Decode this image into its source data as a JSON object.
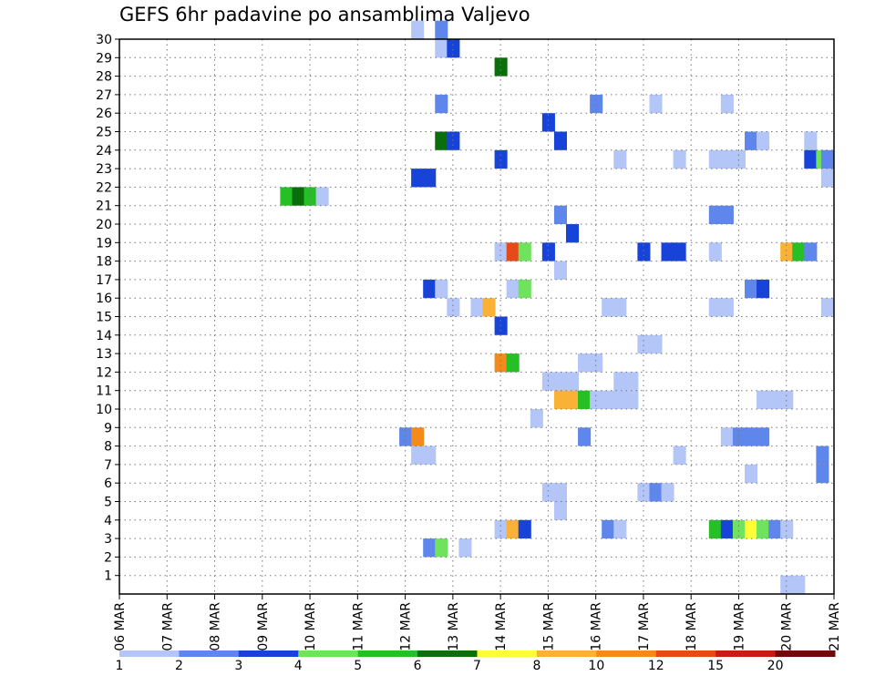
{
  "chart_data": {
    "type": "heatmap",
    "title": "GEFS 6hr padavine po ansamblima Valjevo",
    "xlabel": "",
    "ylabel": "",
    "x_ticks": [
      "06 MAR",
      "07 MAR",
      "08 MAR",
      "09 MAR",
      "10 MAR",
      "11 MAR",
      "12 MAR",
      "13 MAR",
      "14 MAR",
      "15 MAR",
      "16 MAR",
      "17 MAR",
      "18 MAR",
      "19 MAR",
      "20 MAR",
      "21 MAR"
    ],
    "x_range": [
      0,
      60
    ],
    "y_ticks": [
      "1",
      "2",
      "3",
      "4",
      "5",
      "6",
      "7",
      "8",
      "9",
      "10",
      "11",
      "12",
      "13",
      "14",
      "15",
      "16",
      "17",
      "18",
      "19",
      "20",
      "21",
      "22",
      "23",
      "24",
      "25",
      "26",
      "27",
      "28",
      "29",
      "30"
    ],
    "y_range": [
      0,
      30
    ],
    "grid": true,
    "grid_style": "dotted",
    "colorbar": {
      "labels": [
        "1",
        "2",
        "3",
        "4",
        "5",
        "6",
        "7",
        "8",
        "10",
        "12",
        "15",
        "20"
      ],
      "colors": [
        "#b3c6f7",
        "#5f86ea",
        "#1743d8",
        "#6fe35e",
        "#26bf26",
        "#0a6e0a",
        "#ffff33",
        "#f9b136",
        "#f28a1c",
        "#e64a1a",
        "#c81c10",
        "#6e0a0a"
      ]
    },
    "cells": [
      [
        25,
        30,
        0
      ],
      [
        27,
        30,
        1
      ],
      [
        27,
        29,
        0
      ],
      [
        28,
        29,
        2
      ],
      [
        32,
        28,
        5
      ],
      [
        27,
        26,
        1
      ],
      [
        40,
        26,
        1
      ],
      [
        45,
        26,
        0
      ],
      [
        51,
        26,
        0
      ],
      [
        36,
        25,
        2
      ],
      [
        27,
        24,
        5
      ],
      [
        28,
        24,
        2
      ],
      [
        37,
        24,
        2
      ],
      [
        53,
        24,
        1
      ],
      [
        54,
        24,
        0
      ],
      [
        58,
        24,
        0
      ],
      [
        32,
        23,
        2
      ],
      [
        42,
        23,
        0
      ],
      [
        47,
        23,
        0
      ],
      [
        50,
        23,
        0
      ],
      [
        51,
        23,
        0
      ],
      [
        52,
        23,
        0
      ],
      [
        58,
        23,
        2
      ],
      [
        59,
        23,
        3
      ],
      [
        60,
        23,
        1
      ],
      [
        25,
        22,
        2
      ],
      [
        26,
        22,
        2
      ],
      [
        60,
        22,
        0
      ],
      [
        14,
        21,
        4
      ],
      [
        15,
        21,
        5
      ],
      [
        16,
        21,
        4
      ],
      [
        17,
        21,
        0
      ],
      [
        37,
        20,
        1
      ],
      [
        50,
        20,
        1
      ],
      [
        51,
        20,
        1
      ],
      [
        38,
        19,
        2
      ],
      [
        32,
        18,
        0
      ],
      [
        33,
        18,
        9
      ],
      [
        34,
        18,
        3
      ],
      [
        36,
        18,
        2
      ],
      [
        44,
        18,
        2
      ],
      [
        46,
        18,
        2
      ],
      [
        47,
        18,
        2
      ],
      [
        50,
        18,
        0
      ],
      [
        56,
        18,
        7
      ],
      [
        57,
        18,
        4
      ],
      [
        58,
        18,
        1
      ],
      [
        37,
        17,
        0
      ],
      [
        26,
        16,
        2
      ],
      [
        27,
        16,
        0
      ],
      [
        33,
        16,
        0
      ],
      [
        34,
        16,
        3
      ],
      [
        53,
        16,
        1
      ],
      [
        54,
        16,
        2
      ],
      [
        28,
        15,
        0
      ],
      [
        30,
        15,
        0
      ],
      [
        31,
        15,
        7
      ],
      [
        41,
        15,
        0
      ],
      [
        42,
        15,
        0
      ],
      [
        50,
        15,
        0
      ],
      [
        51,
        15,
        0
      ],
      [
        60,
        15,
        0
      ],
      [
        32,
        14,
        2
      ],
      [
        44,
        13,
        0
      ],
      [
        45,
        13,
        0
      ],
      [
        32,
        12,
        8
      ],
      [
        33,
        12,
        4
      ],
      [
        39,
        12,
        0
      ],
      [
        40,
        12,
        0
      ],
      [
        36,
        11,
        0
      ],
      [
        37,
        11,
        0
      ],
      [
        38,
        11,
        0
      ],
      [
        42,
        11,
        0
      ],
      [
        43,
        11,
        0
      ],
      [
        37,
        10,
        7
      ],
      [
        38,
        10,
        7
      ],
      [
        39,
        10,
        4
      ],
      [
        40,
        10,
        0
      ],
      [
        41,
        10,
        0
      ],
      [
        42,
        10,
        0
      ],
      [
        43,
        10,
        0
      ],
      [
        54,
        10,
        0
      ],
      [
        55,
        10,
        0
      ],
      [
        56,
        10,
        0
      ],
      [
        35,
        9,
        0
      ],
      [
        24,
        8,
        1
      ],
      [
        25,
        8,
        8
      ],
      [
        39,
        8,
        1
      ],
      [
        51,
        8,
        0
      ],
      [
        52,
        8,
        1
      ],
      [
        53,
        8,
        1
      ],
      [
        54,
        8,
        1
      ],
      [
        25,
        7,
        0
      ],
      [
        26,
        7,
        0
      ],
      [
        47,
        7,
        0
      ],
      [
        59,
        7,
        1
      ],
      [
        53,
        6,
        0
      ],
      [
        59,
        6,
        1
      ],
      [
        36,
        5,
        0
      ],
      [
        37,
        5,
        0
      ],
      [
        44,
        5,
        0
      ],
      [
        45,
        5,
        1
      ],
      [
        46,
        5,
        0
      ],
      [
        37,
        4,
        0
      ],
      [
        32,
        3,
        0
      ],
      [
        33,
        3,
        7
      ],
      [
        34,
        3,
        2
      ],
      [
        41,
        3,
        1
      ],
      [
        42,
        3,
        0
      ],
      [
        50,
        3,
        4
      ],
      [
        51,
        3,
        2
      ],
      [
        52,
        3,
        3
      ],
      [
        53,
        3,
        6
      ],
      [
        54,
        3,
        3
      ],
      [
        55,
        3,
        1
      ],
      [
        56,
        3,
        0
      ],
      [
        26,
        2,
        1
      ],
      [
        27,
        2,
        3
      ],
      [
        29,
        2,
        0
      ],
      [
        56,
        0,
        0
      ],
      [
        57,
        0,
        0
      ]
    ],
    "cells_format": "[x_step (6h steps from 06 MAR 00Z), member (1-30, row index), color_bin_index]"
  }
}
